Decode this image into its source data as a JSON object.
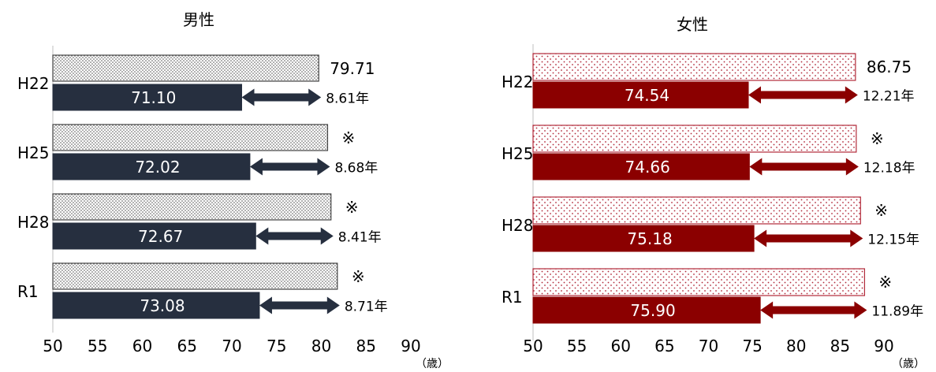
{
  "chart_data": [
    {
      "type": "bar",
      "title": "男性",
      "unit_label": "（歳）",
      "categories": [
        "H22",
        "H25",
        "H28",
        "R1"
      ],
      "xlim": [
        50,
        90
      ],
      "xticks": [
        "50",
        "55",
        "60",
        "65",
        "70",
        "75",
        "80",
        "85",
        "90"
      ],
      "series": [
        {
          "values": [
            79.71,
            80.7,
            81.08,
            81.79
          ],
          "labels": [
            "79.71",
            "※",
            "※",
            "※"
          ]
        },
        {
          "values": [
            71.1,
            72.02,
            72.67,
            73.08
          ],
          "labels": [
            "71.10",
            "72.02",
            "72.67",
            "73.08"
          ]
        }
      ],
      "gap_labels": [
        "8.61年",
        "8.68年",
        "8.41年",
        "8.71年"
      ],
      "colors": {
        "solid": "#262f3f",
        "pattern_dot": "#555555",
        "pattern_bg": "#ffffff"
      }
    },
    {
      "type": "bar",
      "title": "女性",
      "unit_label": "（歳）",
      "categories": [
        "H22",
        "H25",
        "H28",
        "R1"
      ],
      "xlim": [
        50,
        90
      ],
      "xticks": [
        "50",
        "55",
        "60",
        "65",
        "70",
        "75",
        "80",
        "85",
        "90"
      ],
      "series": [
        {
          "values": [
            86.75,
            86.84,
            87.33,
            87.79
          ],
          "labels": [
            "86.75",
            "※",
            "※",
            "※"
          ]
        },
        {
          "values": [
            74.54,
            74.66,
            75.18,
            75.9
          ],
          "labels": [
            "74.54",
            "74.66",
            "75.18",
            "75.90"
          ]
        }
      ],
      "gap_labels": [
        "12.21年",
        "12.18年",
        "12.15年",
        "11.89年"
      ],
      "colors": {
        "solid": "#8b0000",
        "pattern_dot": "#b22a3a",
        "pattern_bg": "#ffffff"
      }
    }
  ]
}
